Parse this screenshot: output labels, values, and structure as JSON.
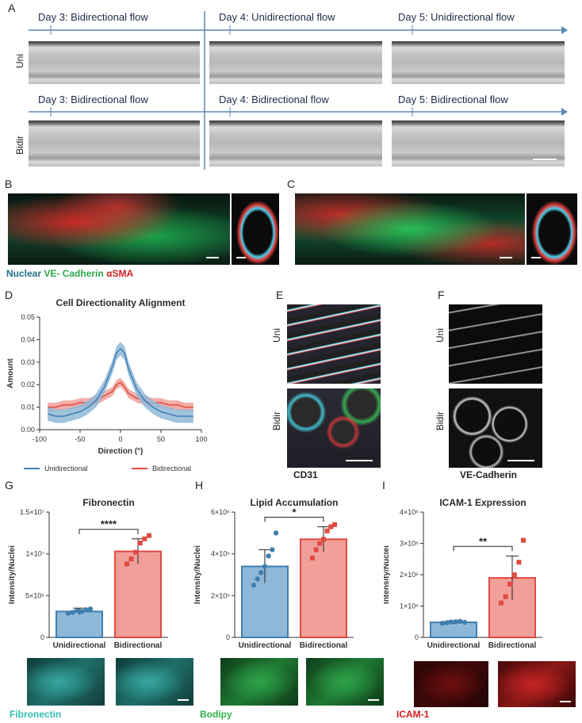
{
  "panels": {
    "A": "A",
    "B": "B",
    "C": "C",
    "D": "D",
    "E": "E",
    "F": "F",
    "G": "G",
    "H": "H",
    "I": "I"
  },
  "panelA": {
    "uni_label": "Uni",
    "bidir_label": "Bidir",
    "uni_days": [
      "Day 3: Bidirectional flow",
      "Day 4: Unidirectional flow",
      "Day 5: Unidirectional flow"
    ],
    "bidir_days": [
      "Day 3: Bidirectional flow",
      "Day 4: Bidirectional flow",
      "Day 5: Bidirectional flow"
    ]
  },
  "stain_legend": {
    "nuclear": "Nuclear",
    "vecad": "VE- Cadherin",
    "asma": "αSMA"
  },
  "panelE": {
    "uni": "Uni",
    "bidir": "Bidir",
    "caption": "CD31"
  },
  "panelF": {
    "uni": "Uni",
    "bidir": "Bidir",
    "caption": "VE-Cadherin"
  },
  "colors": {
    "uni": "#3f7fb0",
    "bidir": "#e04a42",
    "uni_fill": "#8fb8d8",
    "bidir_fill": "#f19f99"
  },
  "chart_data": [
    {
      "type": "line",
      "title": "Cell Directionality Alignment",
      "xlabel": "Direction (°)",
      "ylabel": "Amount",
      "xlim": [
        -100,
        100
      ],
      "ylim": [
        0,
        0.05
      ],
      "xticks": [
        "-100",
        "-50",
        "0",
        "50",
        "100"
      ],
      "yticks": [
        "0.00",
        "0.01",
        "0.02",
        "0.03",
        "0.04",
        "0.05"
      ],
      "x": [
        -90,
        -80,
        -70,
        -60,
        -50,
        -40,
        -30,
        -20,
        -10,
        -5,
        0,
        5,
        10,
        20,
        30,
        40,
        50,
        60,
        70,
        80,
        90
      ],
      "series": [
        {
          "name": "Unidirectional",
          "values": [
            0.007,
            0.006,
            0.006,
            0.007,
            0.008,
            0.01,
            0.013,
            0.019,
            0.028,
            0.034,
            0.036,
            0.034,
            0.027,
            0.018,
            0.013,
            0.01,
            0.008,
            0.007,
            0.006,
            0.006,
            0.006
          ],
          "band": 0.003
        },
        {
          "name": "Bidirectional",
          "values": [
            0.01,
            0.01,
            0.011,
            0.011,
            0.012,
            0.012,
            0.013,
            0.015,
            0.017,
            0.02,
            0.021,
            0.019,
            0.016,
            0.014,
            0.013,
            0.012,
            0.012,
            0.011,
            0.011,
            0.01,
            0.01
          ],
          "band": 0.002
        }
      ],
      "legend": "bottom"
    },
    {
      "type": "bar",
      "title": "Fibronectin",
      "ylabel": "Intensity/Nuclei",
      "categories": [
        "Unidirectional",
        "Bidirectional"
      ],
      "values": [
        3100000,
        10300000
      ],
      "errors": [
        400000,
        1500000
      ],
      "ylim": [
        0,
        15000000
      ],
      "yticks": [
        "0",
        "5×10⁶",
        "1×10⁷",
        "1.5×10⁷"
      ],
      "significance": "****",
      "points": [
        [
          2900000,
          3000000,
          3200000,
          3100000,
          3300000,
          3400000
        ],
        [
          8800000,
          9400000,
          10200000,
          11300000,
          11800000,
          12200000
        ]
      ],
      "image_caption": "Fibronectin"
    },
    {
      "type": "bar",
      "title": "Lipid Accumulation",
      "ylabel": "Intensity/Nuclei",
      "categories": [
        "Unidirectional",
        "Bidirectional"
      ],
      "values": [
        3400000,
        4700000
      ],
      "errors": [
        800000,
        600000
      ],
      "ylim": [
        0,
        6000000
      ],
      "yticks": [
        "0",
        "2×10⁶",
        "4×10⁶",
        "6×10⁶"
      ],
      "significance": "*",
      "points": [
        [
          2500000,
          2800000,
          3100000,
          3400000,
          3900000,
          4200000,
          5000000
        ],
        [
          3800000,
          4200000,
          4500000,
          4700000,
          5100000,
          5300000,
          5400000
        ]
      ],
      "image_caption": "Bodipy"
    },
    {
      "type": "bar",
      "title": "ICAM-1 Expression",
      "ylabel": "Intensity/Nuclei",
      "categories": [
        "Unidirectional",
        "Bidirectional"
      ],
      "values": [
        480000,
        1900000
      ],
      "errors": [
        50000,
        700000
      ],
      "ylim": [
        0,
        4000000
      ],
      "yticks": [
        "0",
        "1×10⁶",
        "2×10⁶",
        "3×10⁶",
        "4×10⁶"
      ],
      "significance": "**",
      "points": [
        [
          450000,
          470000,
          490000,
          500000,
          510000,
          480000
        ],
        [
          1100000,
          1300000,
          1700000,
          2000000,
          2400000,
          3100000
        ]
      ],
      "image_caption": "ICAM-1"
    }
  ]
}
